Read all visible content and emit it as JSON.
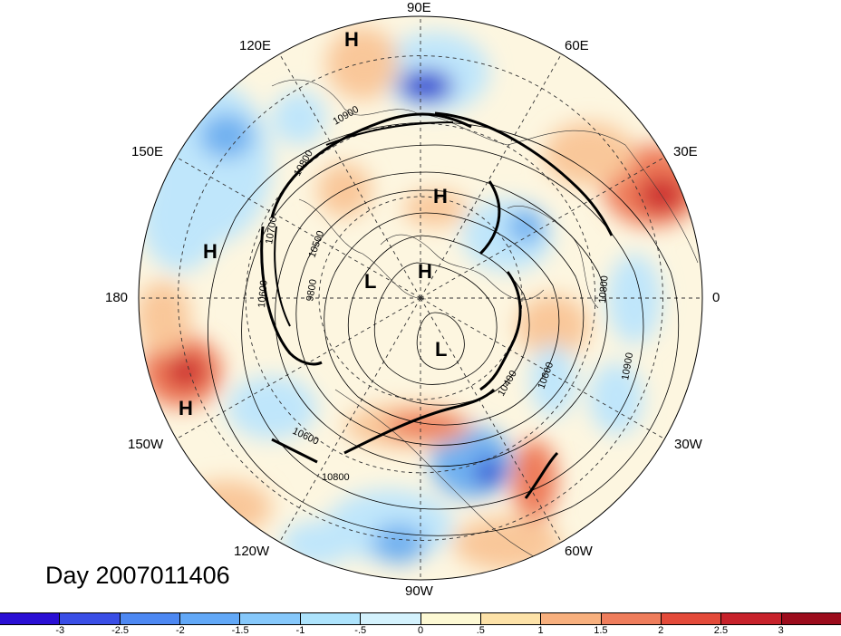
{
  "title": "Day 2007011406",
  "longitude_labels": {
    "lon_90E": "90E",
    "lon_60E": "60E",
    "lon_30E": "30E",
    "lon_0": "0",
    "lon_30W": "30W",
    "lon_60W": "60W",
    "lon_90W": "90W",
    "lon_120W": "120W",
    "lon_150W": "150W",
    "lon_180": "180",
    "lon_150E": "150E",
    "lon_120E": "120E"
  },
  "pressure_centers": [
    {
      "type": "H"
    },
    {
      "type": "H"
    },
    {
      "type": "H"
    },
    {
      "type": "H"
    },
    {
      "type": "H"
    },
    {
      "type": "L"
    },
    {
      "type": "L"
    }
  ],
  "contour_labels": [
    "10900",
    "10800",
    "10700",
    "10600",
    "10500",
    "9800",
    "10400",
    "10600",
    "10800",
    "10900",
    "10600",
    "10800"
  ],
  "colorbar": {
    "colors": [
      "#2a0fd4",
      "#3a4ee6",
      "#4d88f2",
      "#62a8f7",
      "#86c8fb",
      "#ade3fc",
      "#d4f2fd",
      "#fdf9d4",
      "#fde2a8",
      "#f8b07e",
      "#ef7d5c",
      "#e34a3a",
      "#c7222b",
      "#9c0c1c"
    ],
    "tick_labels": [
      "-3",
      "-2.5",
      "-2",
      "-1.5",
      "-1",
      "-.5",
      "0",
      ".5",
      "1",
      "1.5",
      "2",
      "2.5",
      "3"
    ]
  },
  "field_colors": {
    "neutral": "#fdf6e0",
    "light_blue": "#bfe6fb",
    "blue": "#6fb0f0",
    "deep_blue": "#2a3fd0",
    "light_red": "#f9c79a",
    "red": "#ee7b5a",
    "deep_red": "#cc2a2e"
  }
}
